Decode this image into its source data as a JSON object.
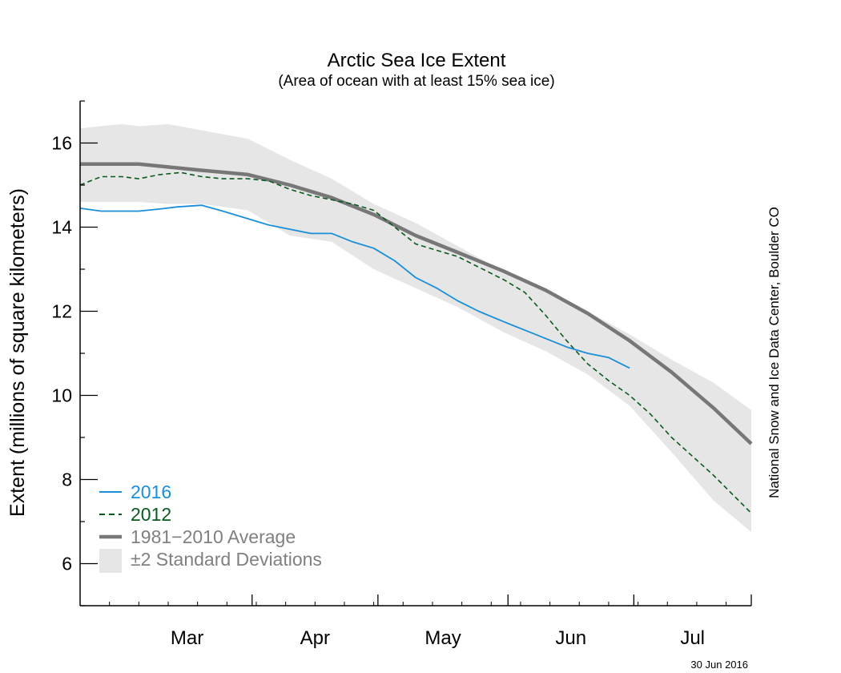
{
  "chart_data": {
    "type": "line",
    "title": "Arctic Sea Ice Extent",
    "subtitle": "(Area of ocean with at least 15% sea ice)",
    "ylabel": "Extent (millions of square kilometers)",
    "xlabel": "",
    "ylim": [
      5,
      17
    ],
    "yticks": [
      6,
      8,
      10,
      12,
      14,
      16
    ],
    "grid": false,
    "legend_position": "bottom-left",
    "x_range": [
      "2016-02-20",
      "2016-07-29"
    ],
    "months": [
      {
        "label": "Mar",
        "start": "2016-03-01",
        "end": "2016-03-31"
      },
      {
        "label": "Apr",
        "start": "2016-04-01",
        "end": "2016-04-30"
      },
      {
        "label": "May",
        "start": "2016-05-01",
        "end": "2016-05-31"
      },
      {
        "label": "Jun",
        "start": "2016-06-01",
        "end": "2016-06-30"
      },
      {
        "label": "Jul",
        "start": "2016-07-01",
        "end": "2016-07-31"
      }
    ],
    "band": {
      "name": "±2 Standard Deviations",
      "color": "#e6e6e6",
      "x": [
        "2016-02-20",
        "2016-03-01",
        "2016-03-05",
        "2016-03-12",
        "2016-03-20",
        "2016-03-31",
        "2016-04-10",
        "2016-04-20",
        "2016-04-30",
        "2016-05-10",
        "2016-05-20",
        "2016-05-31",
        "2016-06-10",
        "2016-06-20",
        "2016-06-30",
        "2016-07-10",
        "2016-07-20",
        "2016-07-29"
      ],
      "upper": [
        16.35,
        16.45,
        16.4,
        16.45,
        16.3,
        16.1,
        15.6,
        15.15,
        14.55,
        14.1,
        13.55,
        12.95,
        12.5,
        12.0,
        11.45,
        10.85,
        10.3,
        9.65
      ],
      "lower": [
        14.6,
        14.6,
        14.6,
        14.55,
        14.55,
        14.4,
        13.8,
        13.65,
        13.0,
        12.55,
        12.1,
        11.5,
        11.05,
        10.5,
        9.75,
        8.65,
        7.5,
        6.75
      ]
    },
    "series": [
      {
        "name": "2016",
        "color": "#1a8fd8",
        "style": "solid",
        "x": [
          "2016-02-20",
          "2016-02-25",
          "2016-03-01",
          "2016-03-05",
          "2016-03-10",
          "2016-03-14",
          "2016-03-20",
          "2016-03-25",
          "2016-03-31",
          "2016-04-05",
          "2016-04-10",
          "2016-04-15",
          "2016-04-20",
          "2016-04-25",
          "2016-04-30",
          "2016-05-05",
          "2016-05-10",
          "2016-05-15",
          "2016-05-20",
          "2016-05-25",
          "2016-05-31",
          "2016-06-05",
          "2016-06-10",
          "2016-06-15",
          "2016-06-20",
          "2016-06-25",
          "2016-06-30"
        ],
        "values": [
          14.45,
          14.38,
          14.38,
          14.38,
          14.43,
          14.48,
          14.52,
          14.38,
          14.2,
          14.05,
          13.95,
          13.85,
          13.85,
          13.65,
          13.5,
          13.2,
          12.8,
          12.55,
          12.25,
          12.0,
          11.75,
          11.55,
          11.35,
          11.15,
          11.0,
          10.9,
          10.65
        ]
      },
      {
        "name": "2012",
        "color": "#0a5a1e",
        "style": "dashed",
        "x": [
          "2016-02-20",
          "2016-02-25",
          "2016-03-01",
          "2016-03-05",
          "2016-03-10",
          "2016-03-15",
          "2016-03-20",
          "2016-03-25",
          "2016-03-31",
          "2016-04-05",
          "2016-04-10",
          "2016-04-15",
          "2016-04-20",
          "2016-04-25",
          "2016-04-30",
          "2016-05-05",
          "2016-05-10",
          "2016-05-15",
          "2016-05-20",
          "2016-05-25",
          "2016-05-31",
          "2016-06-05",
          "2016-06-10",
          "2016-06-15",
          "2016-06-20",
          "2016-06-25",
          "2016-06-30",
          "2016-07-05",
          "2016-07-10",
          "2016-07-15",
          "2016-07-20",
          "2016-07-25",
          "2016-07-29"
        ],
        "values": [
          15.0,
          15.2,
          15.2,
          15.15,
          15.25,
          15.3,
          15.2,
          15.15,
          15.15,
          15.1,
          14.9,
          14.75,
          14.65,
          14.55,
          14.4,
          14.0,
          13.6,
          13.45,
          13.3,
          13.05,
          12.75,
          12.45,
          11.9,
          11.3,
          10.75,
          10.35,
          10.0,
          9.55,
          9.0,
          8.55,
          8.1,
          7.6,
          7.2
        ]
      },
      {
        "name": "1981–2010 Average",
        "color": "#777777",
        "style": "solid-thick",
        "x": [
          "2016-02-20",
          "2016-03-01",
          "2016-03-05",
          "2016-03-10",
          "2016-03-20",
          "2016-03-31",
          "2016-04-10",
          "2016-04-20",
          "2016-04-30",
          "2016-05-10",
          "2016-05-20",
          "2016-05-31",
          "2016-06-10",
          "2016-06-20",
          "2016-06-30",
          "2016-07-10",
          "2016-07-20",
          "2016-07-29"
        ],
        "values": [
          15.5,
          15.5,
          15.5,
          15.45,
          15.35,
          15.25,
          15.0,
          14.7,
          14.3,
          13.8,
          13.4,
          12.95,
          12.5,
          11.95,
          11.3,
          10.55,
          9.7,
          8.85
        ]
      }
    ],
    "legend": [
      {
        "label": "2016",
        "color": "#1a8fd8"
      },
      {
        "label": "2012",
        "color": "#0a5a1e"
      },
      {
        "label": "1981−2010 Average",
        "color": "#808080"
      },
      {
        "label": "±2 Standard Deviations",
        "color": "#808080"
      }
    ],
    "credit": "National Snow and Ice Data Center, Boulder CO",
    "date_stamp": "30 Jun 2016"
  }
}
